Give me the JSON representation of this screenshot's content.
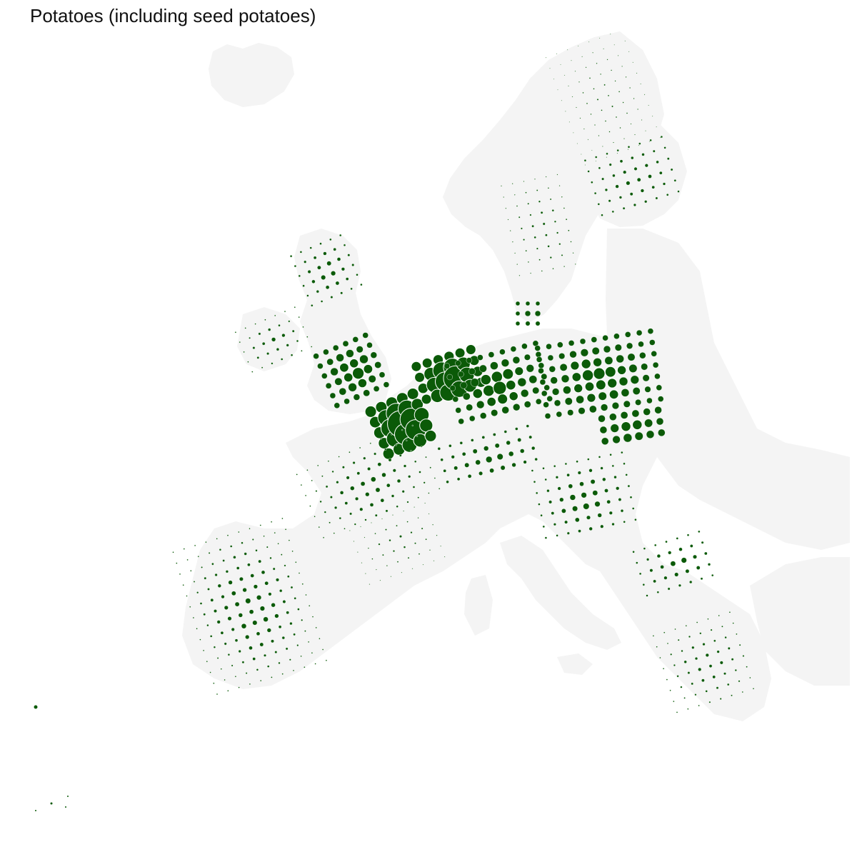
{
  "title": "Potatoes (including seed potatoes)",
  "colors": {
    "background": "#ffffff",
    "land": "#f4f4f4",
    "symbol_fill": "#0b5a08",
    "symbol_stroke": "#ffffff"
  },
  "map": {
    "symbol": "proportional circles",
    "symbol_color_name": "dark green",
    "regions_shown": [
      "Iceland",
      "Scandinavia",
      "Finland",
      "Baltic states",
      "Ireland",
      "Great Britain",
      "France",
      "Benelux",
      "Germany",
      "Poland",
      "Czechia",
      "Slovakia",
      "Hungary",
      "Romania",
      "Bulgaria",
      "Greece",
      "Iberian Peninsula",
      "Italy",
      "Balkans",
      "Turkey (partial)",
      "Canary Islands",
      "Madeira"
    ],
    "hotspots": [
      {
        "region": "Belgium / Netherlands",
        "level": 1.0
      },
      {
        "region": "Northern Germany",
        "level": 0.9
      },
      {
        "region": "Poland",
        "level": 0.6
      },
      {
        "region": "Eastern England",
        "level": 0.55
      },
      {
        "region": "Northern France",
        "level": 0.7
      },
      {
        "region": "Romania",
        "level": 0.35
      },
      {
        "region": "Portugal / NW Spain",
        "level": 0.3
      }
    ]
  }
}
